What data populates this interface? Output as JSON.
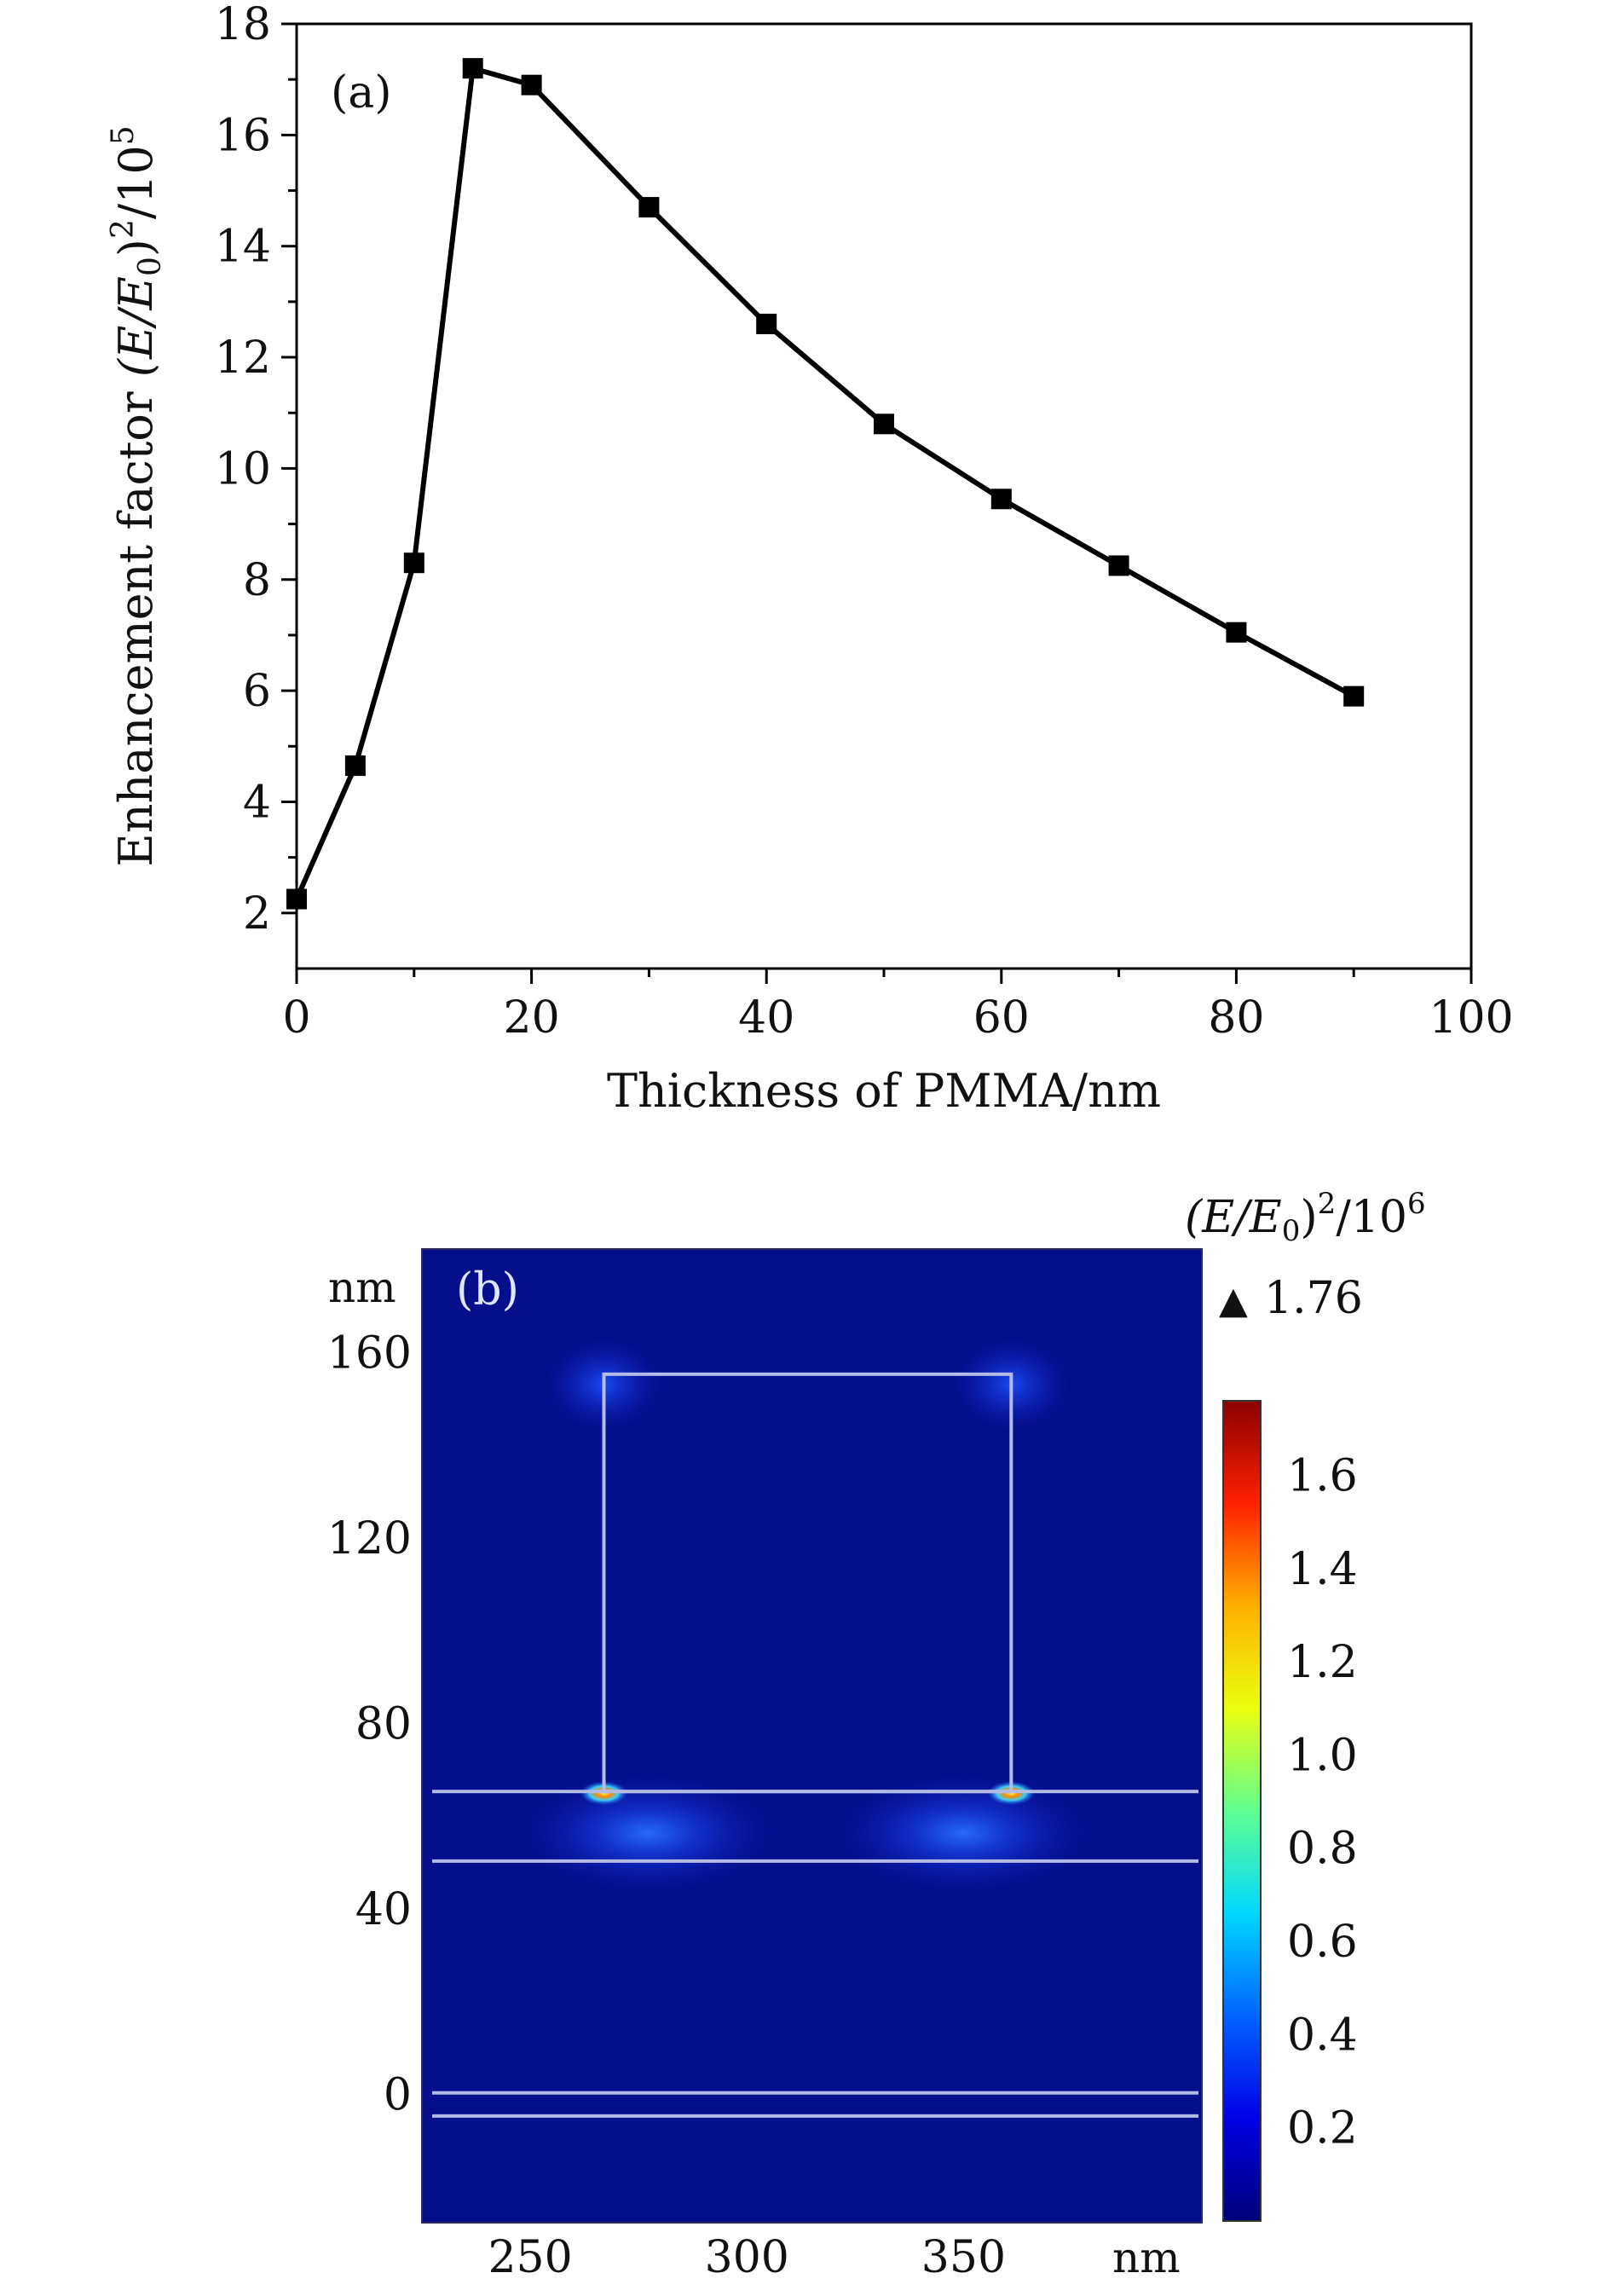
{
  "chart_data": [
    {
      "type": "line",
      "panel_label": "(a)",
      "xlabel": "Thickness of PMMA/nm",
      "ylabel_text": "Enhancement factor ",
      "ylabel_math": "(E/E",
      "ylabel_sub": "0",
      "ylabel_close": ")",
      "ylabel_sup": "2",
      "ylabel_div": "/10",
      "ylabel_exp": "5",
      "xlim": [
        0,
        100
      ],
      "ylim": [
        1,
        18
      ],
      "xticks": [
        0,
        20,
        40,
        60,
        80,
        100
      ],
      "yticks": [
        2,
        4,
        6,
        8,
        10,
        12,
        14,
        16,
        18
      ],
      "series": [
        {
          "name": "Enhancement factor",
          "marker": "square",
          "color": "#000000",
          "x": [
            0,
            5,
            10,
            15,
            20,
            30,
            40,
            50,
            60,
            70,
            80,
            90
          ],
          "y": [
            2.25,
            4.65,
            8.3,
            17.2,
            16.9,
            14.7,
            12.6,
            10.8,
            9.45,
            8.25,
            7.05,
            5.9
          ]
        }
      ]
    },
    {
      "type": "heatmap",
      "panel_label": "(b)",
      "x_unit": "nm",
      "y_unit": "nm",
      "xticks": [
        250,
        300,
        350
      ],
      "yticks": [
        0,
        40,
        80,
        120,
        160
      ],
      "xlim": [
        225,
        405
      ],
      "ylim": [
        -28,
        182
      ],
      "structure_lines_y": [
        65,
        50,
        0,
        -5
      ],
      "particle": {
        "x": [
          267,
          361
        ],
        "y": [
          65,
          155
        ]
      },
      "hotspots": [
        {
          "x": 267,
          "y": 65
        },
        {
          "x": 361,
          "y": 65
        }
      ],
      "colorbar": {
        "title_math": "(E/E",
        "title_sub": "0",
        "title_close": ")",
        "title_sup": "2",
        "title_div": "/10",
        "title_exp": "6",
        "max_label": "1.76",
        "max_marker": "▲",
        "range": [
          0,
          1.76
        ],
        "ticks": [
          1.6,
          1.4,
          1.2,
          1.0,
          0.8,
          0.6,
          0.4,
          0.2
        ],
        "tick_labels": [
          "1.6",
          "1.4",
          "1.2",
          "1.0",
          "0.8",
          "0.6",
          "0.4",
          "0.2"
        ],
        "colors": [
          "#00007a",
          "#0000e6",
          "#0064ff",
          "#00d8ff",
          "#60ff90",
          "#eaff10",
          "#ffb000",
          "#ff2000",
          "#8a0000"
        ]
      }
    }
  ]
}
